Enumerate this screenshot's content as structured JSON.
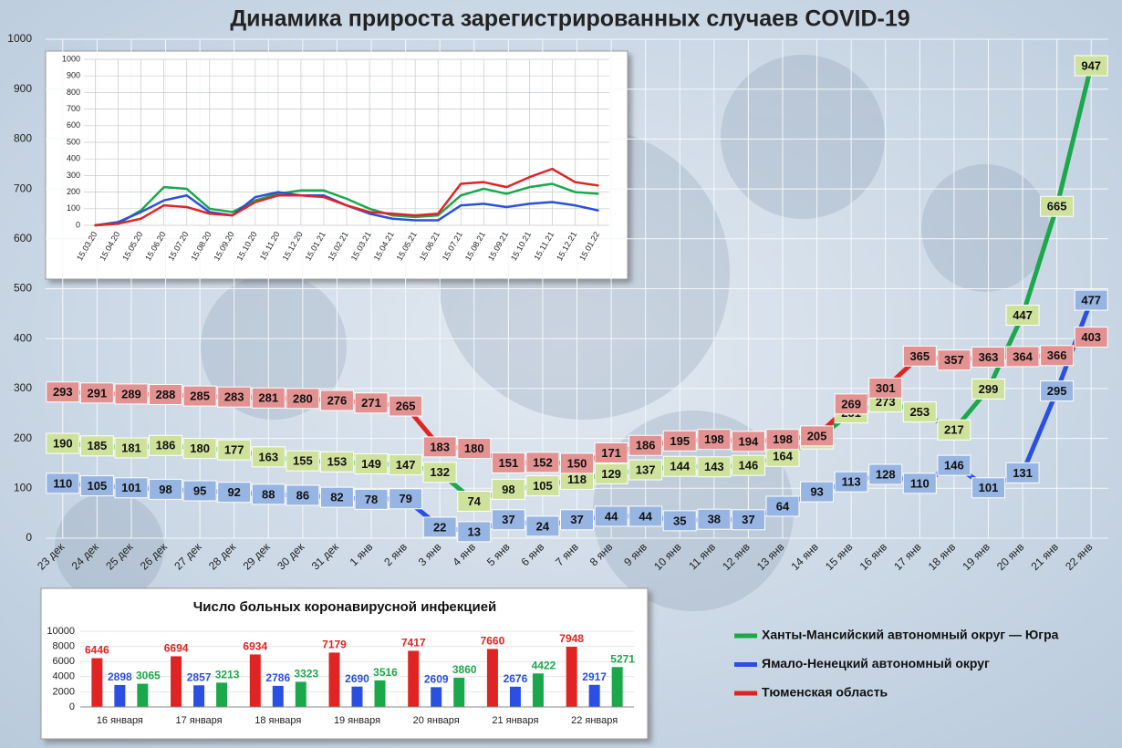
{
  "chart_data": [
    {
      "type": "line",
      "title": "Динамика прироста зарегистрированных случаев COVID-19",
      "categories": [
        "23 дек",
        "24 дек",
        "25 дек",
        "26 дек",
        "27 дек",
        "28 дек",
        "29 дек",
        "30 дек",
        "31 дек",
        "1 янв",
        "2 янв",
        "3 янв",
        "4 янв",
        "5 янв",
        "6 янв",
        "7 янв",
        "8 янв",
        "9 янв",
        "10 янв",
        "11 янв",
        "12 янв",
        "13 янв",
        "14 янв",
        "15 янв",
        "16 янв",
        "17 янв",
        "18 янв",
        "19 янв",
        "20 янв",
        "21 янв",
        "22 янв"
      ],
      "series": [
        {
          "name": "Ханты-Мансийский автономный округ — Югра",
          "color": "#1aa84a",
          "values": [
            190,
            185,
            181,
            186,
            180,
            177,
            163,
            155,
            153,
            149,
            147,
            132,
            74,
            98,
            105,
            118,
            129,
            137,
            144,
            143,
            146,
            164,
            199,
            251,
            273,
            253,
            217,
            299,
            447,
            665,
            947
          ]
        },
        {
          "name": "Ямало-Ненецкий автономный округ",
          "color": "#2b4fe0",
          "values": [
            110,
            105,
            101,
            98,
            95,
            92,
            88,
            86,
            82,
            78,
            79,
            22,
            13,
            37,
            24,
            37,
            44,
            44,
            35,
            38,
            37,
            64,
            93,
            113,
            128,
            110,
            146,
            101,
            131,
            295,
            477
          ]
        },
        {
          "name": "Тюменская область",
          "color": "#e02424",
          "values": [
            293,
            291,
            289,
            288,
            285,
            283,
            281,
            280,
            276,
            271,
            265,
            183,
            180,
            151,
            152,
            150,
            171,
            186,
            195,
            198,
            194,
            198,
            205,
            269,
            301,
            365,
            357,
            363,
            364,
            366,
            403
          ]
        }
      ],
      "ylim": [
        0,
        1000
      ],
      "yticks": [
        0,
        100,
        200,
        300,
        400,
        500,
        600,
        700,
        800,
        900,
        1000
      ],
      "grid": true,
      "legend": "bottom-right"
    },
    {
      "type": "line",
      "categories": [
        "15.03.20",
        "15.04.20",
        "15.05.20",
        "15.06.20",
        "15.07.20",
        "15.08.20",
        "15.09.20",
        "15.10.20",
        "15.11.20",
        "15.12.20",
        "15.01.21",
        "15.02.21",
        "15.03.21",
        "15.04.21",
        "15.05.21",
        "15.06.21",
        "15.07.21",
        "15.08.21",
        "15.09.21",
        "15.10.21",
        "15.11.21",
        "15.12.21",
        "15.01.22"
      ],
      "series": [
        {
          "color": "#1aa84a",
          "values": [
            0,
            10,
            90,
            230,
            220,
            100,
            80,
            150,
            190,
            210,
            210,
            160,
            100,
            60,
            50,
            60,
            180,
            220,
            190,
            230,
            250,
            200,
            190
          ]
        },
        {
          "color": "#2b4fe0",
          "values": [
            0,
            20,
            80,
            150,
            180,
            80,
            60,
            170,
            200,
            180,
            180,
            120,
            70,
            40,
            30,
            30,
            120,
            130,
            110,
            130,
            140,
            120,
            90
          ]
        },
        {
          "color": "#e02424",
          "values": [
            0,
            10,
            40,
            120,
            110,
            70,
            60,
            140,
            180,
            180,
            170,
            120,
            80,
            70,
            60,
            70,
            250,
            260,
            230,
            290,
            340,
            260,
            240
          ]
        }
      ],
      "ylim": [
        0,
        1000
      ],
      "yticks": [
        0,
        100,
        200,
        300,
        400,
        500,
        600,
        700,
        800,
        900,
        1000
      ],
      "grid": true
    },
    {
      "type": "bar",
      "title": "Число больных коронавирусной инфекцией",
      "categories": [
        "16 января",
        "17 января",
        "18 января",
        "19 января",
        "20 января",
        "21 января",
        "22 января"
      ],
      "series": [
        {
          "color": "#e02424",
          "values": [
            6446,
            6694,
            6934,
            7179,
            7417,
            7660,
            7948
          ]
        },
        {
          "color": "#2b4fe0",
          "values": [
            2898,
            2857,
            2786,
            2690,
            2609,
            2676,
            2917
          ]
        },
        {
          "color": "#1aa84a",
          "values": [
            3065,
            3213,
            3323,
            3516,
            3860,
            4422,
            5271
          ]
        }
      ],
      "ylim": [
        0,
        10000
      ],
      "yticks": [
        0,
        2000,
        4000,
        6000,
        8000,
        10000
      ],
      "grid": true
    }
  ]
}
